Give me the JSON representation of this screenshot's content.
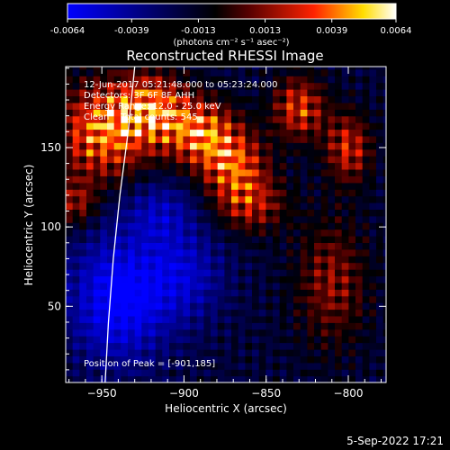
{
  "chart_data": {
    "type": "heatmap",
    "title": "Reconstructed RHESSI Image",
    "xlabel": "Heliocentric X (arcsec)",
    "ylabel": "Heliocentric Y (arcsec)",
    "xlim": [
      -972,
      -777
    ],
    "ylim": [
      2,
      201
    ],
    "x_ticks": [
      -950,
      -900,
      -850,
      -800
    ],
    "y_ticks": [
      50,
      100,
      150
    ],
    "colorbar": {
      "range": [
        -0.0064,
        0.0064
      ],
      "tick_values": [
        -0.0064,
        -0.0039,
        -0.0013,
        0.0013,
        0.0039,
        0.0064
      ],
      "tick_labels": [
        "-0.0064",
        "-0.0039",
        "-0.0013",
        "0.0013",
        "0.0039",
        "0.0064"
      ],
      "unit_label": "(photons cm⁻² s⁻¹ asec⁻²)",
      "colormap": [
        "#0000ff",
        "#000000",
        "#ff0000",
        "#ffff00",
        "#ffffff"
      ]
    },
    "annotations": [
      "12-Jun-2017 05:21:48.000 to 05:23:24.000",
      "Detectors: 3F 6F 8F AHH",
      "Energy Range: 12.0 - 25.0 keV",
      "Clean    Total counts: 545."
    ],
    "peak_label": "Position of Peak = [-901,185]",
    "peak": [
      -901,
      185
    ],
    "limb_curve": [
      [
        -948,
        2
      ],
      [
        -946,
        40
      ],
      [
        -943,
        80
      ],
      [
        -939,
        120
      ],
      [
        -934,
        160
      ],
      [
        -930,
        201
      ]
    ],
    "hot_regions": [
      {
        "x": -950,
        "y": 160,
        "rx": 28,
        "ry": 30,
        "v": 0.0055
      },
      {
        "x": -920,
        "y": 175,
        "rx": 22,
        "ry": 22,
        "v": 0.0048
      },
      {
        "x": -890,
        "y": 160,
        "rx": 22,
        "ry": 20,
        "v": 0.0052
      },
      {
        "x": -870,
        "y": 140,
        "rx": 20,
        "ry": 20,
        "v": 0.0046
      },
      {
        "x": -860,
        "y": 115,
        "rx": 22,
        "ry": 18,
        "v": 0.0036
      },
      {
        "x": -830,
        "y": 175,
        "rx": 16,
        "ry": 20,
        "v": 0.0044
      },
      {
        "x": -800,
        "y": 150,
        "rx": 14,
        "ry": 22,
        "v": 0.004
      },
      {
        "x": -810,
        "y": 65,
        "rx": 22,
        "ry": 40,
        "v": 0.003
      },
      {
        "x": -965,
        "y": 115,
        "rx": 12,
        "ry": 15,
        "v": 0.003
      }
    ],
    "cold_regions": [
      {
        "x": -940,
        "y": 55,
        "rx": 30,
        "ry": 40,
        "v": -0.005
      },
      {
        "x": -900,
        "y": 70,
        "rx": 25,
        "ry": 30,
        "v": -0.003
      },
      {
        "x": -915,
        "y": 110,
        "rx": 22,
        "ry": 20,
        "v": -0.0025
      }
    ]
  },
  "footer_timestamp": "5-Sep-2022 17:21"
}
